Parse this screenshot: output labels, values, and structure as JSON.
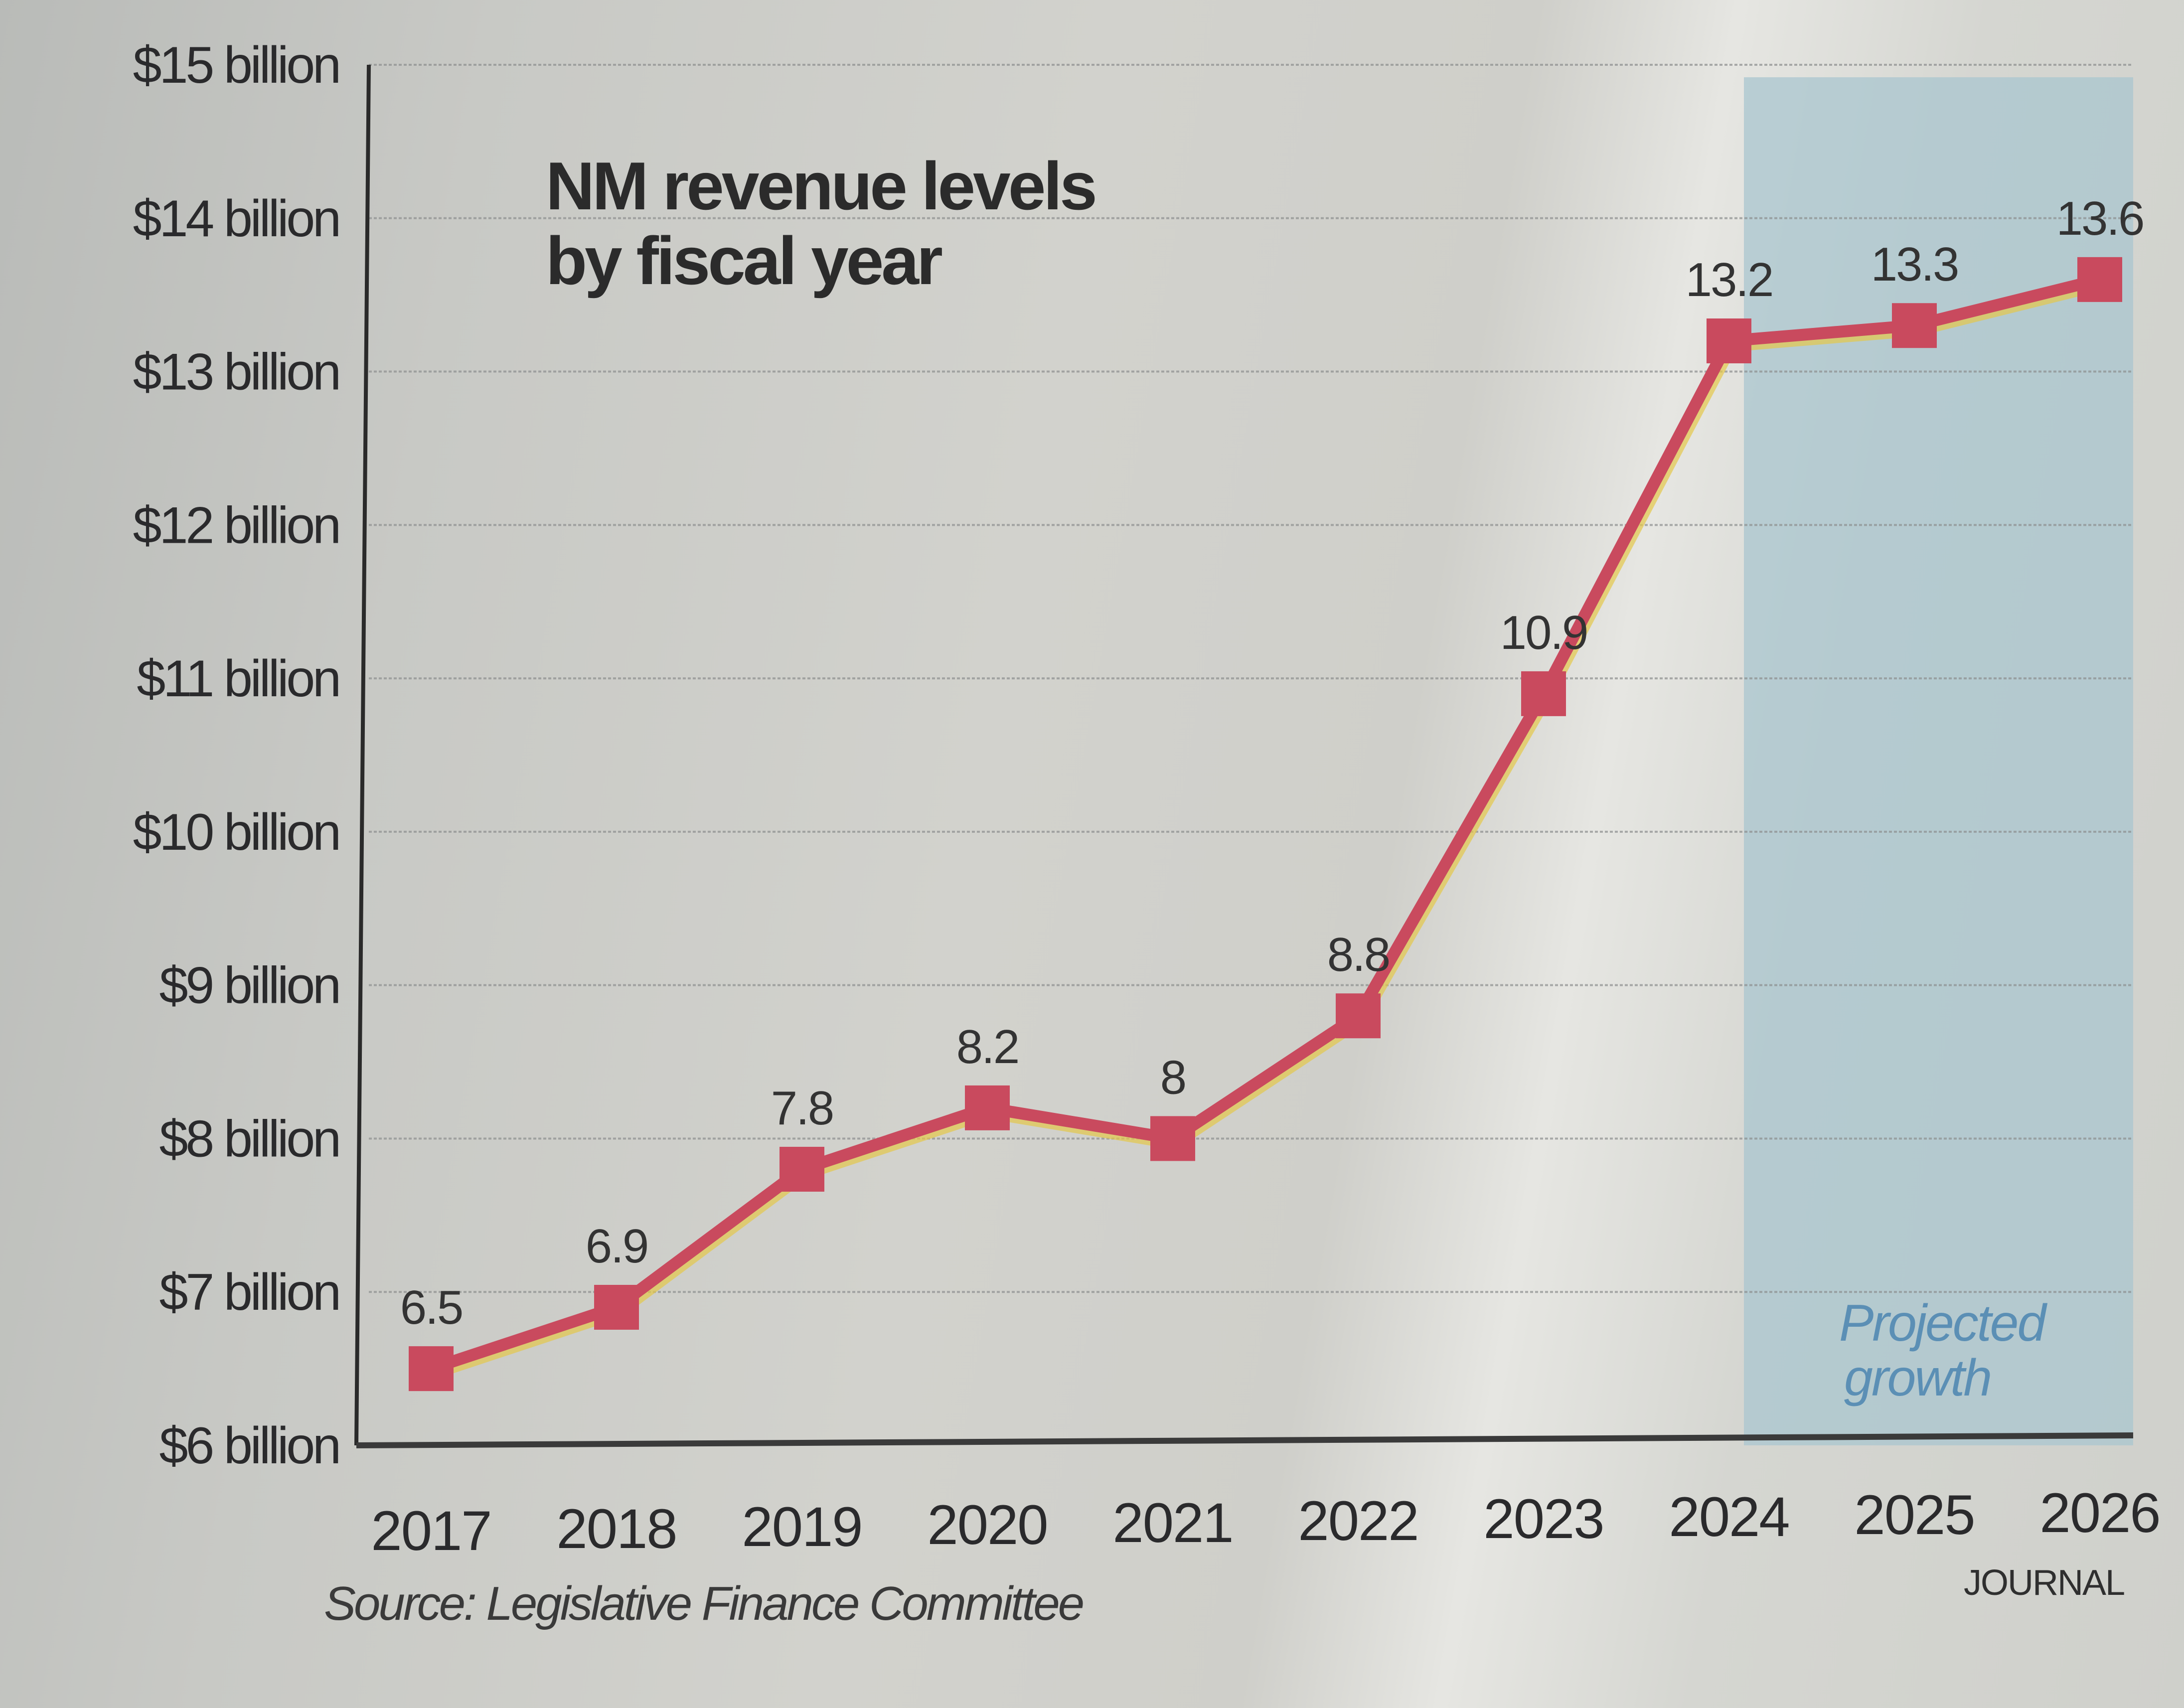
{
  "chart_data": {
    "type": "line",
    "title": "NM revenue levels by fiscal year",
    "title_lines": [
      "NM revenue levels",
      "by fiscal year"
    ],
    "xlabel": "",
    "ylabel": "",
    "categories": [
      "2017",
      "2018",
      "2019",
      "2020",
      "2021",
      "2022",
      "2023",
      "2024",
      "2025",
      "2026"
    ],
    "series": [
      {
        "name": "Revenue ($ billion)",
        "values": [
          6.5,
          6.9,
          7.8,
          8.2,
          8.0,
          8.8,
          10.9,
          13.2,
          13.3,
          13.6
        ],
        "data_labels": [
          "6.5",
          "6.9",
          "7.8",
          "8.2",
          "8",
          "8.8",
          "10.9",
          "13.2",
          "13.3",
          "13.6"
        ],
        "color": "#c94a5e",
        "marker": "square"
      }
    ],
    "ylim": [
      6,
      15
    ],
    "yticks": [
      6,
      7,
      8,
      9,
      10,
      11,
      12,
      13,
      14,
      15
    ],
    "ytick_labels": [
      "$6 billion",
      "$7 billion",
      "$8 billion",
      "$9 billion",
      "$10 billion",
      "$11 billion",
      "$12 billion",
      "$13 billion",
      "$14 billion",
      "$15 billion"
    ],
    "grid": "horizontal-dotted",
    "shaded_region": {
      "label_lines": [
        "Projected",
        "growth"
      ],
      "from_category": "2024",
      "to_category": "2026",
      "color": "#a9c6cf",
      "label_color": "#5b8fb5"
    },
    "source": "Source: Legislative Finance Committee",
    "credit": "JOURNAL"
  }
}
